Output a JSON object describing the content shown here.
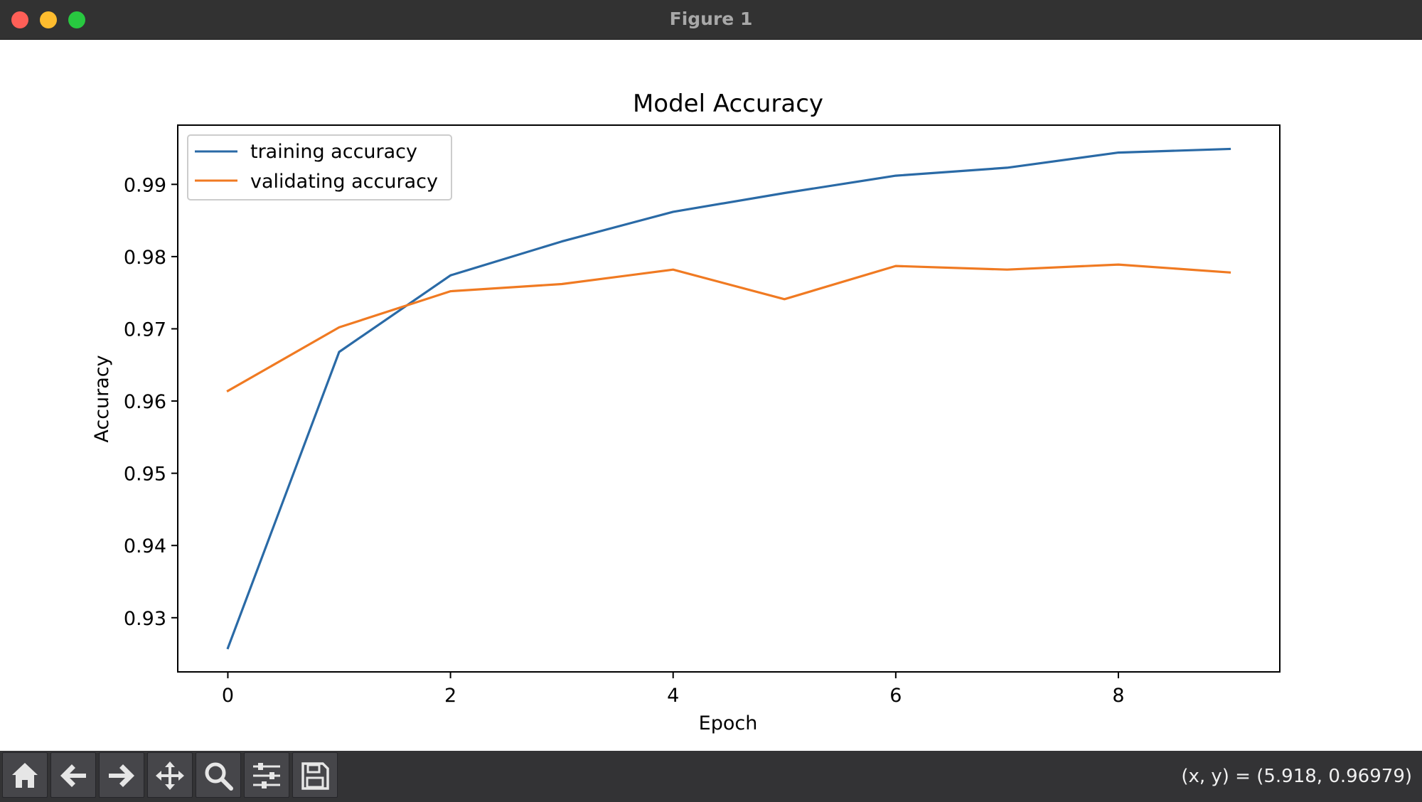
{
  "window": {
    "title": "Figure 1",
    "controls": [
      "close",
      "minimize",
      "maximize"
    ],
    "control_colors": {
      "close": "#fe5f57",
      "minimize": "#febc2e",
      "maximize": "#28c840"
    }
  },
  "chart_data": {
    "type": "line",
    "title": "Model Accuracy",
    "xlabel": "Epoch",
    "ylabel": "Accuracy",
    "x": [
      0,
      1,
      2,
      3,
      4,
      5,
      6,
      7,
      8,
      9
    ],
    "xlim": [
      -0.45,
      9.45
    ],
    "ylim": [
      0.9225,
      0.9982
    ],
    "xticks": [
      0,
      2,
      4,
      6,
      8
    ],
    "yticks": [
      0.93,
      0.94,
      0.95,
      0.96,
      0.97,
      0.98,
      0.99
    ],
    "xtick_labels": [
      "0",
      "2",
      "4",
      "6",
      "8"
    ],
    "ytick_labels": [
      "0.93",
      "0.94",
      "0.95",
      "0.96",
      "0.97",
      "0.98",
      "0.99"
    ],
    "grid": false,
    "legend_position": "upper left",
    "series": [
      {
        "name": "training accuracy",
        "color": "#2a6aa6",
        "values": [
          0.9258,
          0.9668,
          0.9774,
          0.9821,
          0.9862,
          0.9888,
          0.9912,
          0.9923,
          0.9944,
          0.9949
        ]
      },
      {
        "name": "validating accuracy",
        "color": "#f07a22",
        "values": [
          0.9614,
          0.9702,
          0.9752,
          0.9762,
          0.9782,
          0.9741,
          0.9787,
          0.9782,
          0.9789,
          0.9778
        ]
      }
    ]
  },
  "toolbar": {
    "buttons": [
      {
        "name": "home",
        "icon": "home-icon"
      },
      {
        "name": "back",
        "icon": "arrow-left-icon"
      },
      {
        "name": "forward",
        "icon": "arrow-right-icon"
      },
      {
        "name": "pan",
        "icon": "move-icon"
      },
      {
        "name": "zoom",
        "icon": "magnifier-icon"
      },
      {
        "name": "configure-subplots",
        "icon": "sliders-icon"
      },
      {
        "name": "save",
        "icon": "floppy-icon"
      }
    ],
    "coordinates": "(x, y) = (5.918, 0.96979)"
  }
}
